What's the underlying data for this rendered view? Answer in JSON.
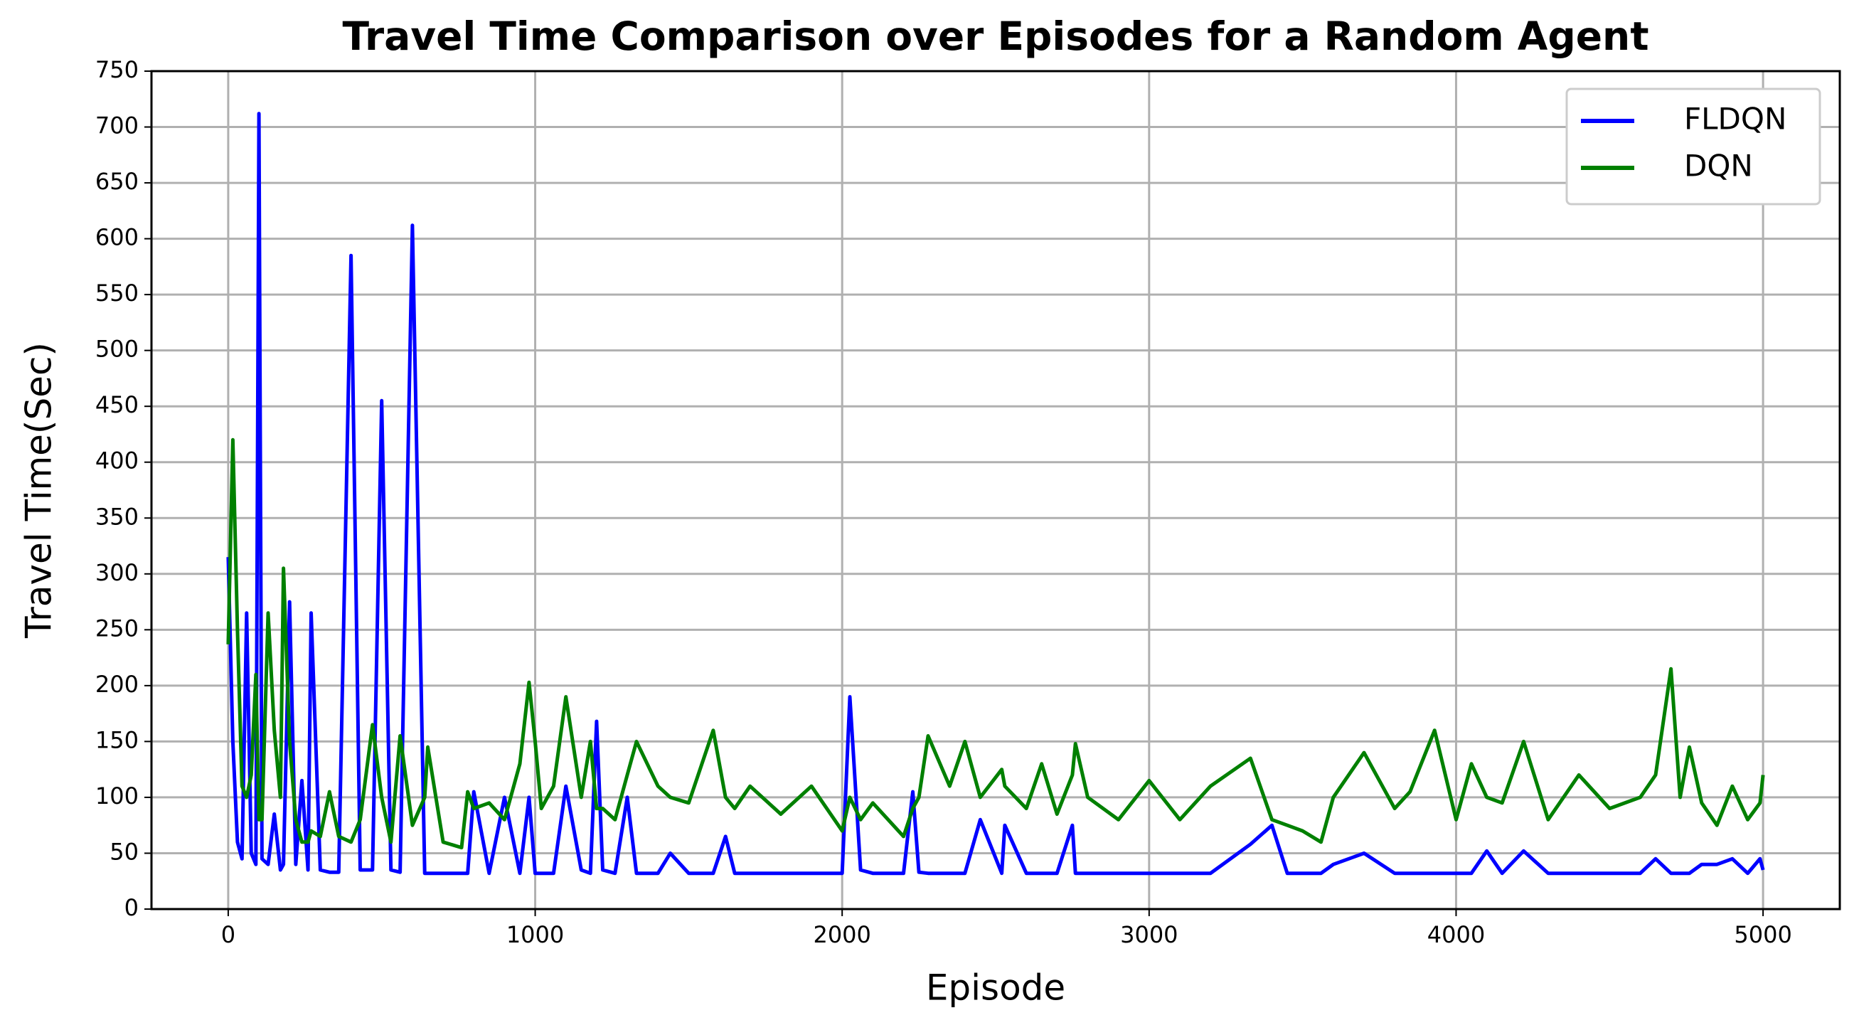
{
  "chart_data": {
    "type": "line",
    "title": "Travel Time Comparison over Episodes for a Random Agent",
    "x_label": "Episode",
    "y_label": "Travel Time(Sec)",
    "x": [
      0,
      15,
      30,
      45,
      60,
      75,
      90,
      100,
      110,
      130,
      150,
      170,
      180,
      200,
      220,
      240,
      260,
      270,
      300,
      330,
      360,
      400,
      430,
      470,
      500,
      530,
      560,
      600,
      640,
      650,
      700,
      760,
      780,
      800,
      850,
      900,
      950,
      980,
      1000,
      1020,
      1060,
      1100,
      1150,
      1180,
      1200,
      1220,
      1260,
      1300,
      1330,
      1400,
      1440,
      1500,
      1580,
      1620,
      1650,
      1700,
      1800,
      1900,
      2000,
      2025,
      2060,
      2100,
      2200,
      2230,
      2250,
      2280,
      2350,
      2400,
      2450,
      2520,
      2530,
      2600,
      2650,
      2700,
      2750,
      2760,
      2800,
      2900,
      3000,
      3100,
      3200,
      3330,
      3400,
      3450,
      3500,
      3560,
      3600,
      3700,
      3800,
      3850,
      3930,
      4000,
      4050,
      4100,
      4150,
      4220,
      4300,
      4400,
      4500,
      4600,
      4650,
      4700,
      4730,
      4760,
      4800,
      4850,
      4900,
      4950,
      4990,
      5000
    ],
    "series": [
      {
        "name": "FLDQN",
        "color": "#0000ff",
        "values": [
          315,
          150,
          60,
          45,
          265,
          50,
          40,
          712,
          45,
          40,
          85,
          35,
          40,
          275,
          40,
          115,
          35,
          265,
          35,
          33,
          33,
          585,
          35,
          35,
          455,
          35,
          33,
          612,
          32,
          32,
          32,
          32,
          32,
          105,
          32,
          100,
          32,
          100,
          32,
          32,
          32,
          110,
          35,
          32,
          168,
          35,
          32,
          100,
          32,
          32,
          50,
          32,
          32,
          65,
          32,
          32,
          32,
          32,
          32,
          190,
          35,
          32,
          32,
          105,
          33,
          32,
          32,
          32,
          80,
          32,
          75,
          32,
          32,
          32,
          75,
          32,
          32,
          32,
          32,
          32,
          32,
          58,
          75,
          32,
          32,
          32,
          40,
          50,
          32,
          32,
          32,
          32,
          32,
          52,
          32,
          52,
          32,
          32,
          32,
          32,
          45,
          32,
          32,
          32,
          40,
          40,
          45,
          32,
          45,
          35
        ]
      },
      {
        "name": "DQN",
        "color": "#008000",
        "values": [
          237,
          420,
          250,
          110,
          100,
          120,
          210,
          80,
          80,
          265,
          160,
          100,
          305,
          150,
          80,
          60,
          60,
          70,
          65,
          105,
          65,
          60,
          80,
          165,
          100,
          60,
          155,
          75,
          100,
          145,
          60,
          55,
          105,
          90,
          95,
          80,
          130,
          203,
          150,
          90,
          110,
          190,
          100,
          150,
          90,
          90,
          80,
          120,
          150,
          110,
          100,
          95,
          160,
          100,
          90,
          110,
          85,
          110,
          70,
          100,
          80,
          95,
          65,
          90,
          100,
          155,
          110,
          150,
          100,
          125,
          110,
          90,
          130,
          85,
          120,
          148,
          100,
          80,
          115,
          80,
          110,
          135,
          80,
          75,
          70,
          60,
          100,
          140,
          90,
          105,
          160,
          80,
          130,
          100,
          95,
          150,
          80,
          120,
          90,
          100,
          120,
          215,
          100,
          145,
          95,
          75,
          110,
          80,
          95,
          120
        ]
      }
    ],
    "xlim": [
      -250,
      5250
    ],
    "ylim": [
      0,
      750
    ],
    "xticks": [
      0,
      1000,
      2000,
      3000,
      4000,
      5000
    ],
    "yticks": [
      0,
      50,
      100,
      150,
      200,
      250,
      300,
      350,
      400,
      450,
      500,
      550,
      600,
      650,
      700,
      750
    ],
    "grid": true,
    "legend": "upper right"
  }
}
